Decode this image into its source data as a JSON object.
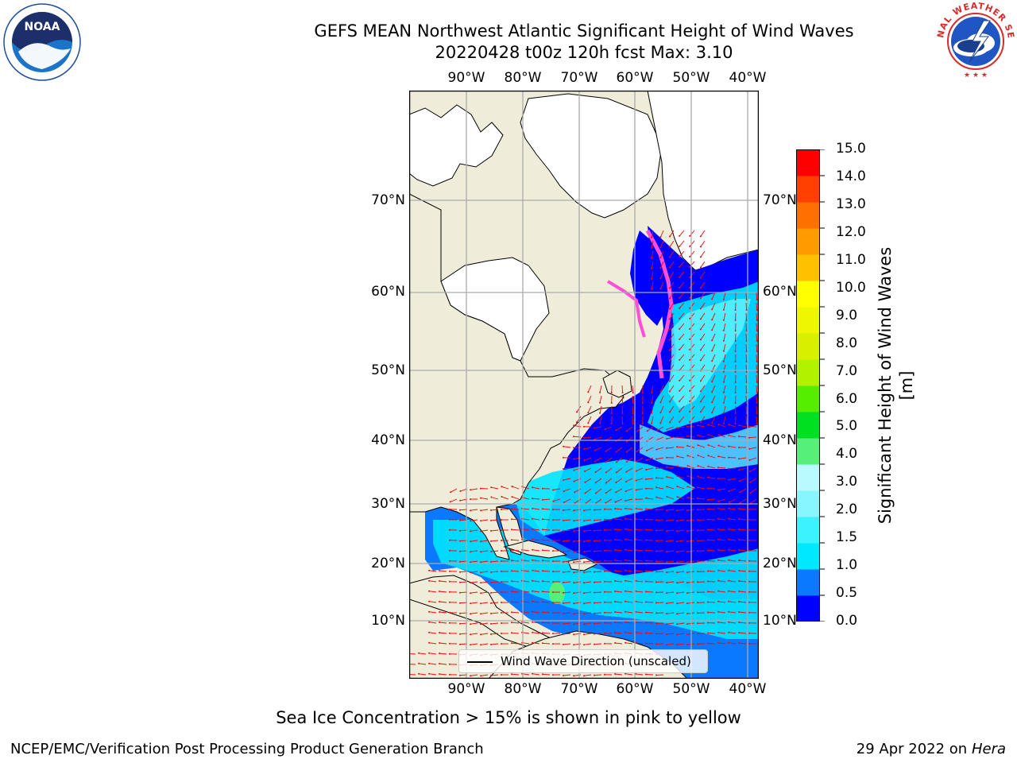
{
  "header": {
    "title_line1": "GEFS MEAN Northwest Atlantic Significant Height of Wind Waves",
    "title_line2": "20220428 t00z 120h fcst   Max: 3.10"
  },
  "logos": {
    "noaa": "NOAA",
    "nws": "NATIONAL WEATHER SERVICE"
  },
  "map": {
    "lon_labels": [
      "90°W",
      "80°W",
      "70°W",
      "60°W",
      "50°W",
      "40°W"
    ],
    "lat_labels": [
      "70°N",
      "60°N",
      "50°N",
      "40°N",
      "30°N",
      "20°N",
      "10°N"
    ],
    "legend_label": "Wind Wave Direction (unscaled)",
    "colors": {
      "land": "#efedda",
      "ice_land": "#ffffff",
      "ocean_calm": "#0000ff",
      "ocean_low": "#0a78ff",
      "ocean_mid": "#00e4ff",
      "ocean_high": "#5ef2ff",
      "arrows": "#ff0000",
      "sea_ice": "#ff4fd8"
    }
  },
  "colorbar": {
    "title": "Significant Height of Wind Waves [m]",
    "ticks": [
      "15.0",
      "14.0",
      "13.0",
      "12.0",
      "11.0",
      "10.0",
      "9.0",
      "8.0",
      "7.0",
      "6.0",
      "5.0",
      "4.0",
      "3.0",
      "2.0",
      "1.5",
      "1.0",
      "0.5",
      "0.0"
    ],
    "colors_bottom_to_top": [
      "#0000ff",
      "#0a78ff",
      "#00e8ff",
      "#3cf2ff",
      "#88f6ff",
      "#b8faff",
      "#55f07a",
      "#00e020",
      "#55ee00",
      "#b2f200",
      "#d8f000",
      "#eef700",
      "#ffff00",
      "#ffc000",
      "#ff9a00",
      "#ff7000",
      "#ff4000",
      "#ff0000"
    ]
  },
  "note": "Sea Ice Concentration > 15% is shown in pink to yellow",
  "footer": {
    "left": "NCEP/EMC/Verification Post Processing Product Generation Branch",
    "right_date": "29 Apr 2022 on ",
    "right_host": "Hera"
  }
}
